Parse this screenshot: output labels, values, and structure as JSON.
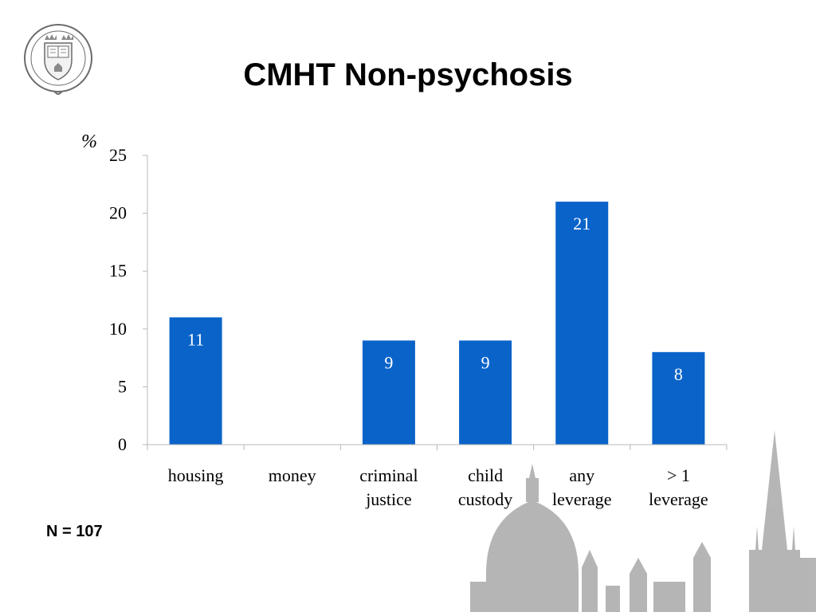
{
  "slide": {
    "title": "CMHT Non-psychosis",
    "footnote": "N = 107",
    "logo_icon": "oxford-university-seal-icon",
    "background_icon": "oxford-skyline-icon"
  },
  "chart_data": {
    "type": "bar",
    "title": "CMHT Non-psychosis",
    "xlabel": "",
    "ylabel": "%",
    "categories": [
      [
        "housing"
      ],
      [
        "money"
      ],
      [
        "criminal",
        "justice"
      ],
      [
        "child",
        "custody"
      ],
      [
        "any",
        "leverage"
      ],
      [
        "> 1",
        "leverage"
      ]
    ],
    "values": [
      11,
      0,
      9,
      9,
      21,
      8
    ],
    "value_labels": [
      "11",
      "",
      "9",
      "9",
      "21",
      "8"
    ],
    "ylim": [
      0,
      25
    ],
    "yticks": [
      0,
      5,
      10,
      15,
      20,
      25
    ],
    "grid": false,
    "legend": "none",
    "bar_color": "#0a63c9",
    "label_color": "#ffffff"
  }
}
